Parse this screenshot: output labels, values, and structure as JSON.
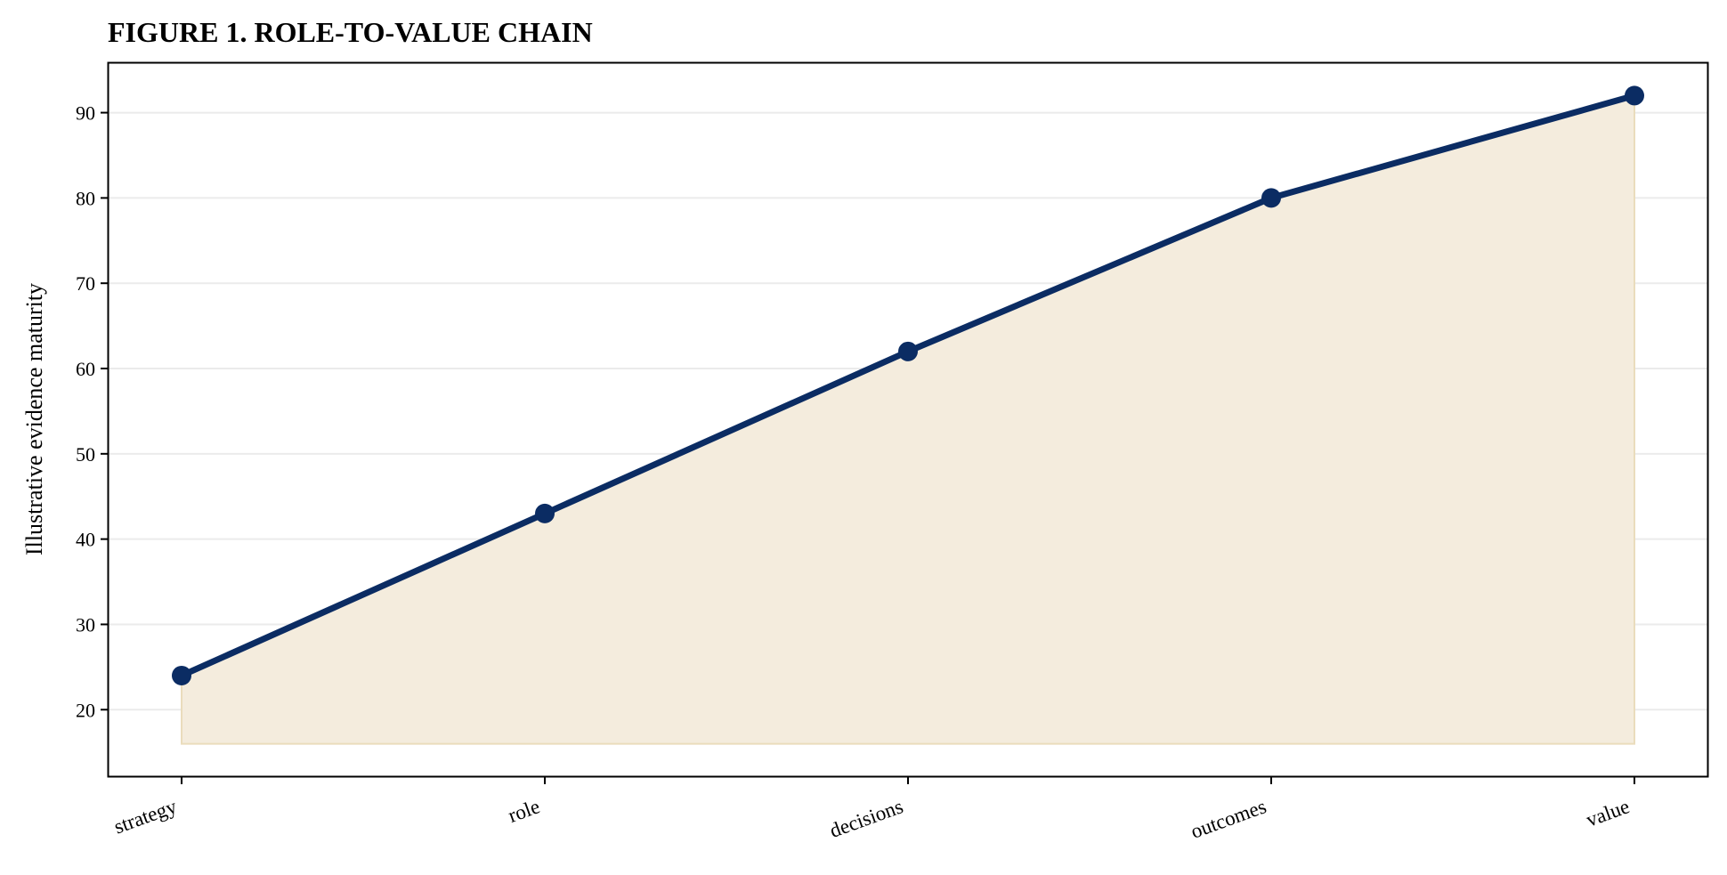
{
  "chart_data": {
    "type": "line",
    "title": "FIGURE 1. ROLE-TO-VALUE CHAIN",
    "xlabel": "",
    "ylabel": "Illustrative evidence maturity",
    "categories": [
      "strategy",
      "role",
      "decisions",
      "outcomes",
      "value"
    ],
    "series": [
      {
        "values": [
          24,
          43,
          62,
          80,
          92
        ],
        "fill_baseline": 16
      }
    ],
    "ylim": [
      12.2,
      95.8
    ],
    "yticks": [
      20,
      30,
      40,
      50,
      60,
      70,
      80,
      90
    ],
    "grid": {
      "x": false,
      "y": true
    },
    "legend": "none",
    "colors": {
      "line": "#0b2c63",
      "marker": "#0b2c63",
      "fill": "#f4ecdd",
      "fill_edge": "#eadcbc",
      "grid": "#ebebeb",
      "axis": "#000000"
    }
  }
}
